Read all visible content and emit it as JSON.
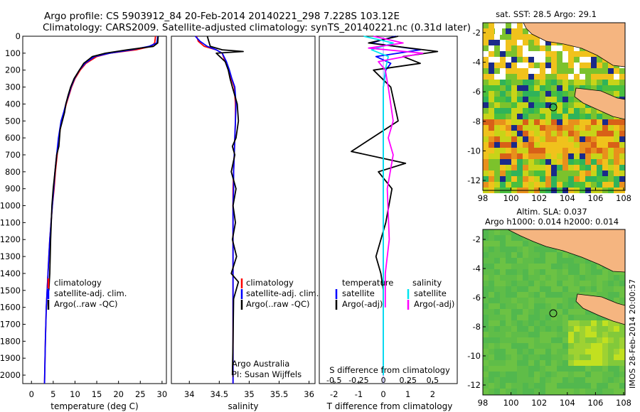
{
  "header": {
    "title_line1": "Argo profile: CS 5903912_84 20-Feb-2014 20140221_298 7.228S 103.12E",
    "title_line2": "Climatology: CARS2009. Satellite-adjusted climatology: synTS_20140221.nc (0.31d later)"
  },
  "colors": {
    "climatology": "#ff0000",
    "satellite": "#0000ff",
    "argo": "#000000",
    "argo_s": "#ff00ff",
    "satellite_s": "#00e5ee"
  },
  "chart_data": [
    {
      "id": "temperature",
      "type": "line",
      "xlabel": "temperature (deg C)",
      "xlim": [
        -2,
        31
      ],
      "xticks": [
        "0",
        "5",
        "10",
        "15",
        "20",
        "25",
        "30"
      ],
      "xtick_values": [
        0,
        5,
        10,
        15,
        20,
        25,
        30
      ],
      "ylim": [
        0,
        2050
      ],
      "yticks": [
        "0",
        "100",
        "200",
        "300",
        "400",
        "500",
        "600",
        "700",
        "800",
        "900",
        "1000",
        "1100",
        "1200",
        "1300",
        "1400",
        "1500",
        "1600",
        "1700",
        "1800",
        "1900",
        "2000"
      ],
      "ytick_values": [
        0,
        100,
        200,
        300,
        400,
        500,
        600,
        700,
        800,
        900,
        1000,
        1100,
        1200,
        1300,
        1400,
        1500,
        1600,
        1700,
        1800,
        1900,
        2000
      ],
      "legend": [
        "climatology",
        "satellite-adj. clim.",
        "Argo(..raw -QC)"
      ],
      "series": [
        {
          "name": "climatology",
          "color": "#ff0000",
          "x": [
            28.5,
            28.3,
            27.5,
            24,
            18,
            15,
            12.5,
            11.2,
            10,
            9.2,
            8.6,
            8,
            7.5,
            6.9,
            6.3,
            5.9,
            5.5,
            5.2,
            4.8,
            4.5,
            4.2,
            4,
            3.8,
            3.6,
            3.4,
            3.2,
            3
          ],
          "y": [
            0,
            40,
            60,
            80,
            100,
            120,
            160,
            200,
            250,
            300,
            350,
            400,
            450,
            500,
            600,
            700,
            800,
            900,
            1000,
            1100,
            1200,
            1300,
            1400,
            1500,
            1600,
            1800,
            2050
          ]
        },
        {
          "name": "satellite-adj. clim.",
          "color": "#0000ff",
          "x": [
            29,
            28.8,
            27,
            23,
            18,
            14.5,
            12.3,
            11,
            9.9,
            9.1,
            8.5,
            7.9,
            7.4,
            6.8,
            6.2,
            5.8,
            5.4,
            5.1,
            4.8,
            4.5,
            4.2,
            4,
            3.8,
            3.6,
            3.4,
            3.2,
            3
          ],
          "y": [
            0,
            40,
            60,
            80,
            100,
            120,
            160,
            200,
            250,
            300,
            350,
            400,
            450,
            500,
            600,
            700,
            800,
            900,
            1000,
            1100,
            1200,
            1300,
            1400,
            1500,
            1600,
            1800,
            2050
          ]
        },
        {
          "name": "Argo(..raw -QC)",
          "color": "#000000",
          "x": [
            29.1,
            29,
            28,
            22,
            17,
            14,
            12,
            11,
            9.8,
            9,
            8.4,
            7.9,
            7.6,
            6.6,
            6.3,
            5.8,
            5.4,
            5,
            4.7,
            4.4,
            4.2,
            4
          ],
          "y": [
            0,
            40,
            60,
            80,
            100,
            120,
            160,
            200,
            250,
            300,
            350,
            400,
            450,
            550,
            650,
            700,
            800,
            900,
            1000,
            1200,
            1400,
            1500
          ]
        }
      ]
    },
    {
      "id": "salinity",
      "type": "line",
      "xlabel": "salinity",
      "xlim": [
        33.7,
        36.1
      ],
      "xticks": [
        "34",
        "34.5",
        "35",
        "35.5",
        "36"
      ],
      "xtick_values": [
        34,
        34.5,
        35,
        35.5,
        36
      ],
      "ylim": [
        0,
        2050
      ],
      "legend": [
        "climatology",
        "satellite-adj. clim.",
        "Argo(..raw -QC)"
      ],
      "annotations": [
        "Argo Australia",
        "PI: Susan Wijffels"
      ],
      "series": [
        {
          "name": "climatology",
          "color": "#ff0000",
          "x": [
            34.12,
            34.15,
            34.25,
            34.45,
            34.55,
            34.6,
            34.66,
            34.7,
            34.75,
            34.77,
            34.77,
            34.76,
            34.75,
            34.74,
            34.73,
            34.73,
            34.73,
            34.73,
            34.73,
            34.73,
            34.73,
            34.73,
            34.73
          ],
          "y": [
            0,
            30,
            60,
            80,
            100,
            150,
            200,
            250,
            300,
            400,
            500,
            600,
            700,
            800,
            900,
            1000,
            1100,
            1200,
            1300,
            1400,
            1500,
            1800,
            2050
          ]
        },
        {
          "name": "satellite-adj. clim.",
          "color": "#0000ff",
          "x": [
            34.1,
            34.18,
            34.3,
            34.45,
            34.55,
            34.62,
            34.67,
            34.71,
            34.76,
            34.78,
            34.77,
            34.76,
            34.75,
            34.74,
            34.74,
            34.73,
            34.73,
            34.73,
            34.73,
            34.73,
            34.73,
            34.73,
            34.73
          ],
          "y": [
            0,
            30,
            60,
            80,
            100,
            150,
            200,
            250,
            300,
            400,
            500,
            600,
            700,
            800,
            900,
            1000,
            1100,
            1200,
            1300,
            1400,
            1500,
            1800,
            2050
          ]
        },
        {
          "name": "Argo(..raw -QC)",
          "color": "#000000",
          "x": [
            34.3,
            34.35,
            34.55,
            34.9,
            34.45,
            34.6,
            34.65,
            34.68,
            34.72,
            34.8,
            34.82,
            34.78,
            34.72,
            34.76,
            34.7,
            34.78,
            34.73,
            34.77,
            34.72,
            34.79,
            34.7,
            34.82,
            34.74,
            34.73,
            34.72
          ],
          "y": [
            0,
            60,
            80,
            90,
            100,
            150,
            200,
            250,
            300,
            400,
            500,
            600,
            650,
            700,
            800,
            900,
            1000,
            1100,
            1200,
            1300,
            1400,
            1450,
            1550,
            1800,
            2000
          ]
        }
      ]
    },
    {
      "id": "difference",
      "type": "line",
      "xlabel": "T difference from climatology",
      "xlabel_top": "S difference from climatology",
      "xlim": [
        -2.6,
        3
      ],
      "xticks": [
        "-2",
        "-1",
        "0",
        "1",
        "2"
      ],
      "xtick_values": [
        -2,
        -1,
        0,
        1,
        2
      ],
      "s_ticks": [
        "-0.5",
        "-0.25",
        "0",
        "0.25",
        "0.5"
      ],
      "s_tick_values": [
        -0.5,
        -0.25,
        0,
        0.25,
        0.5
      ],
      "legend_title_t": "temperature",
      "legend_title_s": "salinity",
      "legend": [
        "satellite",
        "Argo(-adj)",
        "satellite",
        "Argo(-adj)"
      ],
      "series": [
        {
          "name": "T satellite",
          "color": "#0000ff",
          "x": [
            0.5,
            -0.5,
            1.5,
            -0.3,
            0.3,
            0.1,
            0,
            0,
            0,
            0,
            0
          ],
          "y": [
            0,
            40,
            80,
            120,
            160,
            200,
            300,
            500,
            800,
            1200,
            2000
          ]
        },
        {
          "name": "T Argo(-adj)",
          "color": "#000000",
          "x": [
            0.6,
            -0.6,
            2.2,
            0.8,
            1.5,
            -0.4,
            0.3,
            0.6,
            -1.3,
            0.9,
            -0.2,
            0.35,
            0.1,
            -0.3,
            -0.1,
            0,
            0
          ],
          "y": [
            0,
            40,
            90,
            120,
            160,
            200,
            300,
            500,
            680,
            750,
            800,
            900,
            1100,
            1300,
            1400,
            1500,
            1600
          ]
        },
        {
          "name": "S satellite",
          "color": "#00e5ee",
          "x": [
            -0.2,
            0.1,
            -0.12,
            0.05,
            0.02,
            0,
            0,
            0,
            0,
            0
          ],
          "y": [
            0,
            40,
            80,
            120,
            200,
            300,
            600,
            900,
            1300,
            2000
          ]
        },
        {
          "name": "S Argo(-adj)",
          "color": "#ff00ff",
          "x": [
            -0.1,
            0.2,
            -0.15,
            0.4,
            -0.05,
            0.02,
            0.05,
            0.1,
            0.05,
            0.1,
            0.04,
            0.06,
            0.02,
            0.02
          ],
          "y": [
            0,
            40,
            70,
            100,
            150,
            200,
            300,
            500,
            600,
            700,
            900,
            1200,
            1400,
            1600
          ]
        }
      ]
    },
    {
      "id": "sst_map",
      "type": "heatmap",
      "title": "sat. SST: 28.5 Argo: 29.1",
      "xticks": [
        "98",
        "100",
        "102",
        "104",
        "106",
        "108"
      ],
      "yticks": [
        "-2",
        "-4",
        "-6",
        "-8",
        "-10",
        "-12"
      ],
      "argo_position": [
        103.12,
        -7.228
      ]
    },
    {
      "id": "sla_map",
      "type": "heatmap",
      "title_line1": "Altim. SLA: 0.037",
      "title_line2": "Argo h1000: 0.014 h2000: 0.014",
      "xticks": [
        "98",
        "100",
        "102",
        "104",
        "106",
        "108"
      ],
      "yticks": [
        "-2",
        "-4",
        "-6",
        "-8",
        "-10",
        "-12"
      ],
      "argo_position": [
        103.12,
        -7.228
      ]
    }
  ],
  "footer": {
    "timestamp": "IMOS 28-Feb-2014 20:00:57"
  }
}
